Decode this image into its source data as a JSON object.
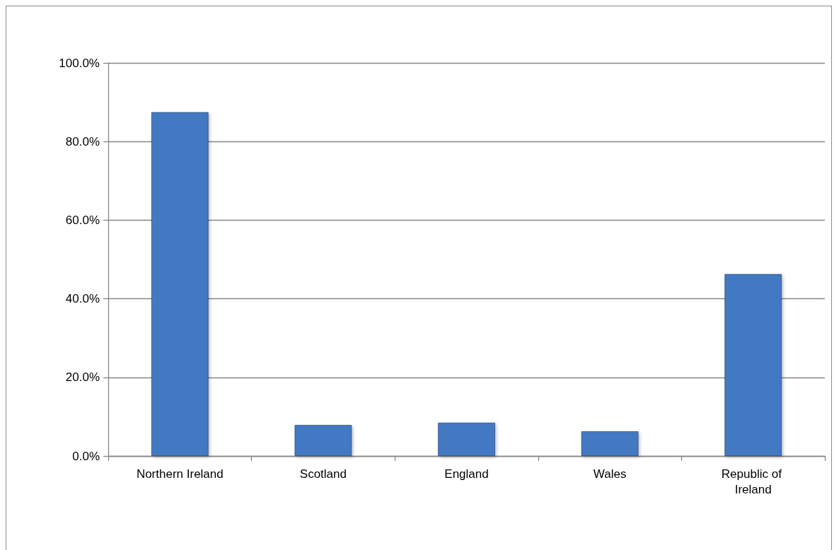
{
  "chart_data": {
    "type": "bar",
    "categories": [
      "Northern Ireland",
      "Scotland",
      "England",
      "Wales",
      "Republic of Ireland"
    ],
    "values": [
      87.5,
      7.9,
      8.5,
      6.3,
      46.3
    ],
    "color": "#4279c2",
    "ylim": [
      0,
      100
    ],
    "yticks": [
      {
        "value": 0,
        "label": "0.0%"
      },
      {
        "value": 20,
        "label": "20.0%"
      },
      {
        "value": 40,
        "label": "40.0%"
      },
      {
        "value": 60,
        "label": "60.0%"
      },
      {
        "value": 80,
        "label": "80.0%"
      },
      {
        "value": 100,
        "label": "100.0%"
      }
    ],
    "grid": "y"
  }
}
